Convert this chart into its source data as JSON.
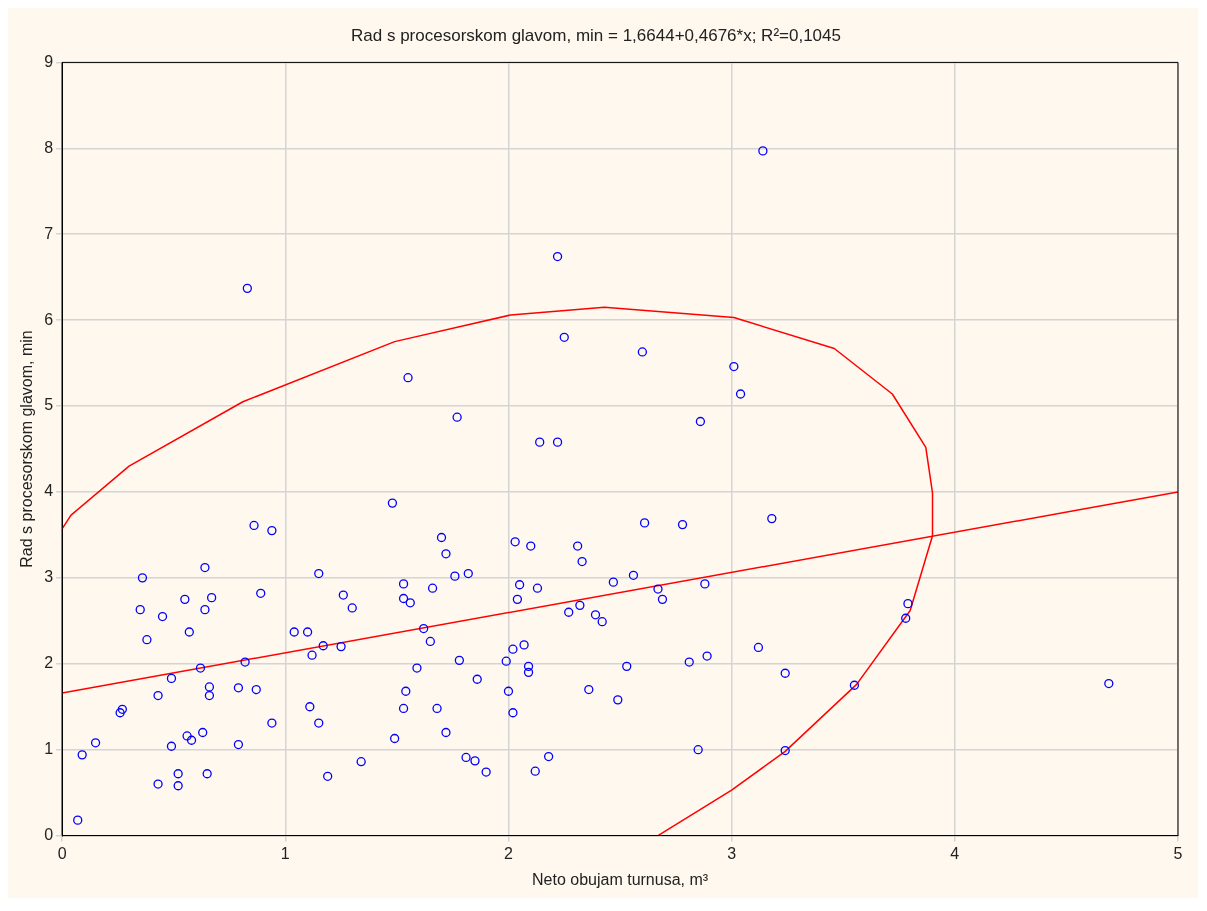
{
  "chart_data": {
    "type": "scatter",
    "title": "Rad s procesorskom glavom, min = 1,6644+0,4676*x; R²=0,1045",
    "xlabel": "Neto obujam turnusa, m³",
    "ylabel": "Rad s procesorskom glavom, min",
    "xlim": [
      0,
      5
    ],
    "ylim": [
      0,
      9
    ],
    "xticks": [
      0,
      1,
      2,
      3,
      4,
      5
    ],
    "yticks": [
      0,
      1,
      2,
      3,
      4,
      5,
      6,
      7,
      8,
      9
    ],
    "grid": true,
    "legend": false,
    "marker": "circle",
    "series": [
      {
        "type": "scatter",
        "color": "#0000ff",
        "x": [
          0.07,
          0.09,
          0.15,
          0.26,
          0.27,
          0.35,
          0.36,
          0.38,
          0.43,
          0.43,
          0.45,
          0.49,
          0.49,
          0.52,
          0.52,
          0.55,
          0.56,
          0.57,
          0.58,
          0.62,
          0.63,
          0.64,
          0.64,
          0.65,
          0.66,
          0.66,
          0.67,
          0.79,
          0.79,
          0.82,
          0.83,
          0.86,
          0.87,
          0.89,
          0.94,
          0.94,
          1.04,
          1.1,
          1.11,
          1.12,
          1.15,
          1.15,
          1.17,
          1.19,
          1.25,
          1.26,
          1.3,
          1.34,
          1.48,
          1.49,
          1.53,
          1.53,
          1.53,
          1.54,
          1.55,
          1.56,
          1.59,
          1.62,
          1.65,
          1.66,
          1.68,
          1.7,
          1.72,
          1.72,
          1.76,
          1.77,
          1.78,
          1.81,
          1.82,
          1.85,
          1.86,
          1.9,
          1.99,
          2.0,
          2.02,
          2.02,
          2.03,
          2.04,
          2.05,
          2.07,
          2.09,
          2.09,
          2.1,
          2.12,
          2.13,
          2.14,
          2.18,
          2.22,
          2.22,
          2.25,
          2.27,
          2.31,
          2.32,
          2.33,
          2.36,
          2.39,
          2.42,
          2.47,
          2.49,
          2.53,
          2.56,
          2.6,
          2.61,
          2.67,
          2.69,
          2.78,
          2.81,
          2.85,
          2.86,
          2.88,
          2.89,
          3.01,
          3.04,
          3.12,
          3.14,
          3.18,
          3.24,
          3.24,
          3.55,
          3.78,
          3.79,
          4.69
        ],
        "values": [
          0.18,
          0.94,
          1.08,
          1.43,
          1.47,
          2.63,
          3.0,
          2.28,
          1.63,
          0.6,
          2.55,
          1.04,
          1.83,
          0.72,
          0.58,
          2.75,
          1.16,
          2.37,
          1.11,
          1.95,
          1.2,
          2.63,
          3.12,
          0.72,
          1.73,
          1.63,
          2.77,
          1.72,
          1.06,
          2.02,
          6.37,
          3.61,
          1.7,
          2.82,
          3.55,
          1.31,
          2.37,
          2.37,
          1.5,
          2.1,
          3.05,
          1.31,
          2.21,
          0.69,
          2.2,
          2.8,
          2.65,
          0.86,
          3.87,
          1.13,
          2.93,
          1.48,
          2.76,
          1.68,
          5.33,
          2.71,
          1.95,
          2.41,
          2.26,
          2.88,
          1.48,
          3.47,
          3.28,
          1.2,
          3.02,
          4.87,
          2.04,
          0.91,
          3.05,
          0.87,
          1.82,
          0.74,
          2.03,
          1.68,
          2.17,
          1.43,
          3.42,
          2.75,
          2.92,
          2.22,
          1.97,
          1.9,
          3.37,
          0.75,
          2.88,
          4.58,
          0.92,
          6.74,
          4.58,
          5.8,
          2.6,
          3.37,
          2.68,
          3.19,
          1.7,
          2.57,
          2.49,
          2.95,
          1.58,
          1.97,
          3.03,
          5.63,
          3.64,
          2.87,
          2.75,
          3.62,
          2.02,
          1.0,
          4.82,
          2.93,
          2.09,
          5.46,
          5.14,
          2.19,
          7.97,
          3.69,
          1.89,
          0.99,
          1.75,
          2.53,
          2.7,
          1.77
        ]
      },
      {
        "type": "line",
        "color": "#ff0000",
        "marker": "none",
        "x": [
          0,
          5
        ],
        "values": [
          1.66,
          4.0
        ]
      },
      {
        "type": "line",
        "color": "#ff0000",
        "marker": "none",
        "x": [
          0,
          0.04,
          0.3,
          0.81,
          1.49,
          2.01,
          2.43,
          3.01,
          3.46,
          3.72,
          3.87,
          3.9,
          3.9,
          3.8,
          3.56,
          3.24,
          3.0,
          2.67
        ],
        "values": [
          3.57,
          3.73,
          4.3,
          5.05,
          5.75,
          6.06,
          6.15,
          6.03,
          5.67,
          5.14,
          4.52,
          3.99,
          3.49,
          2.62,
          1.76,
          0.98,
          0.53,
          0
        ]
      }
    ]
  }
}
